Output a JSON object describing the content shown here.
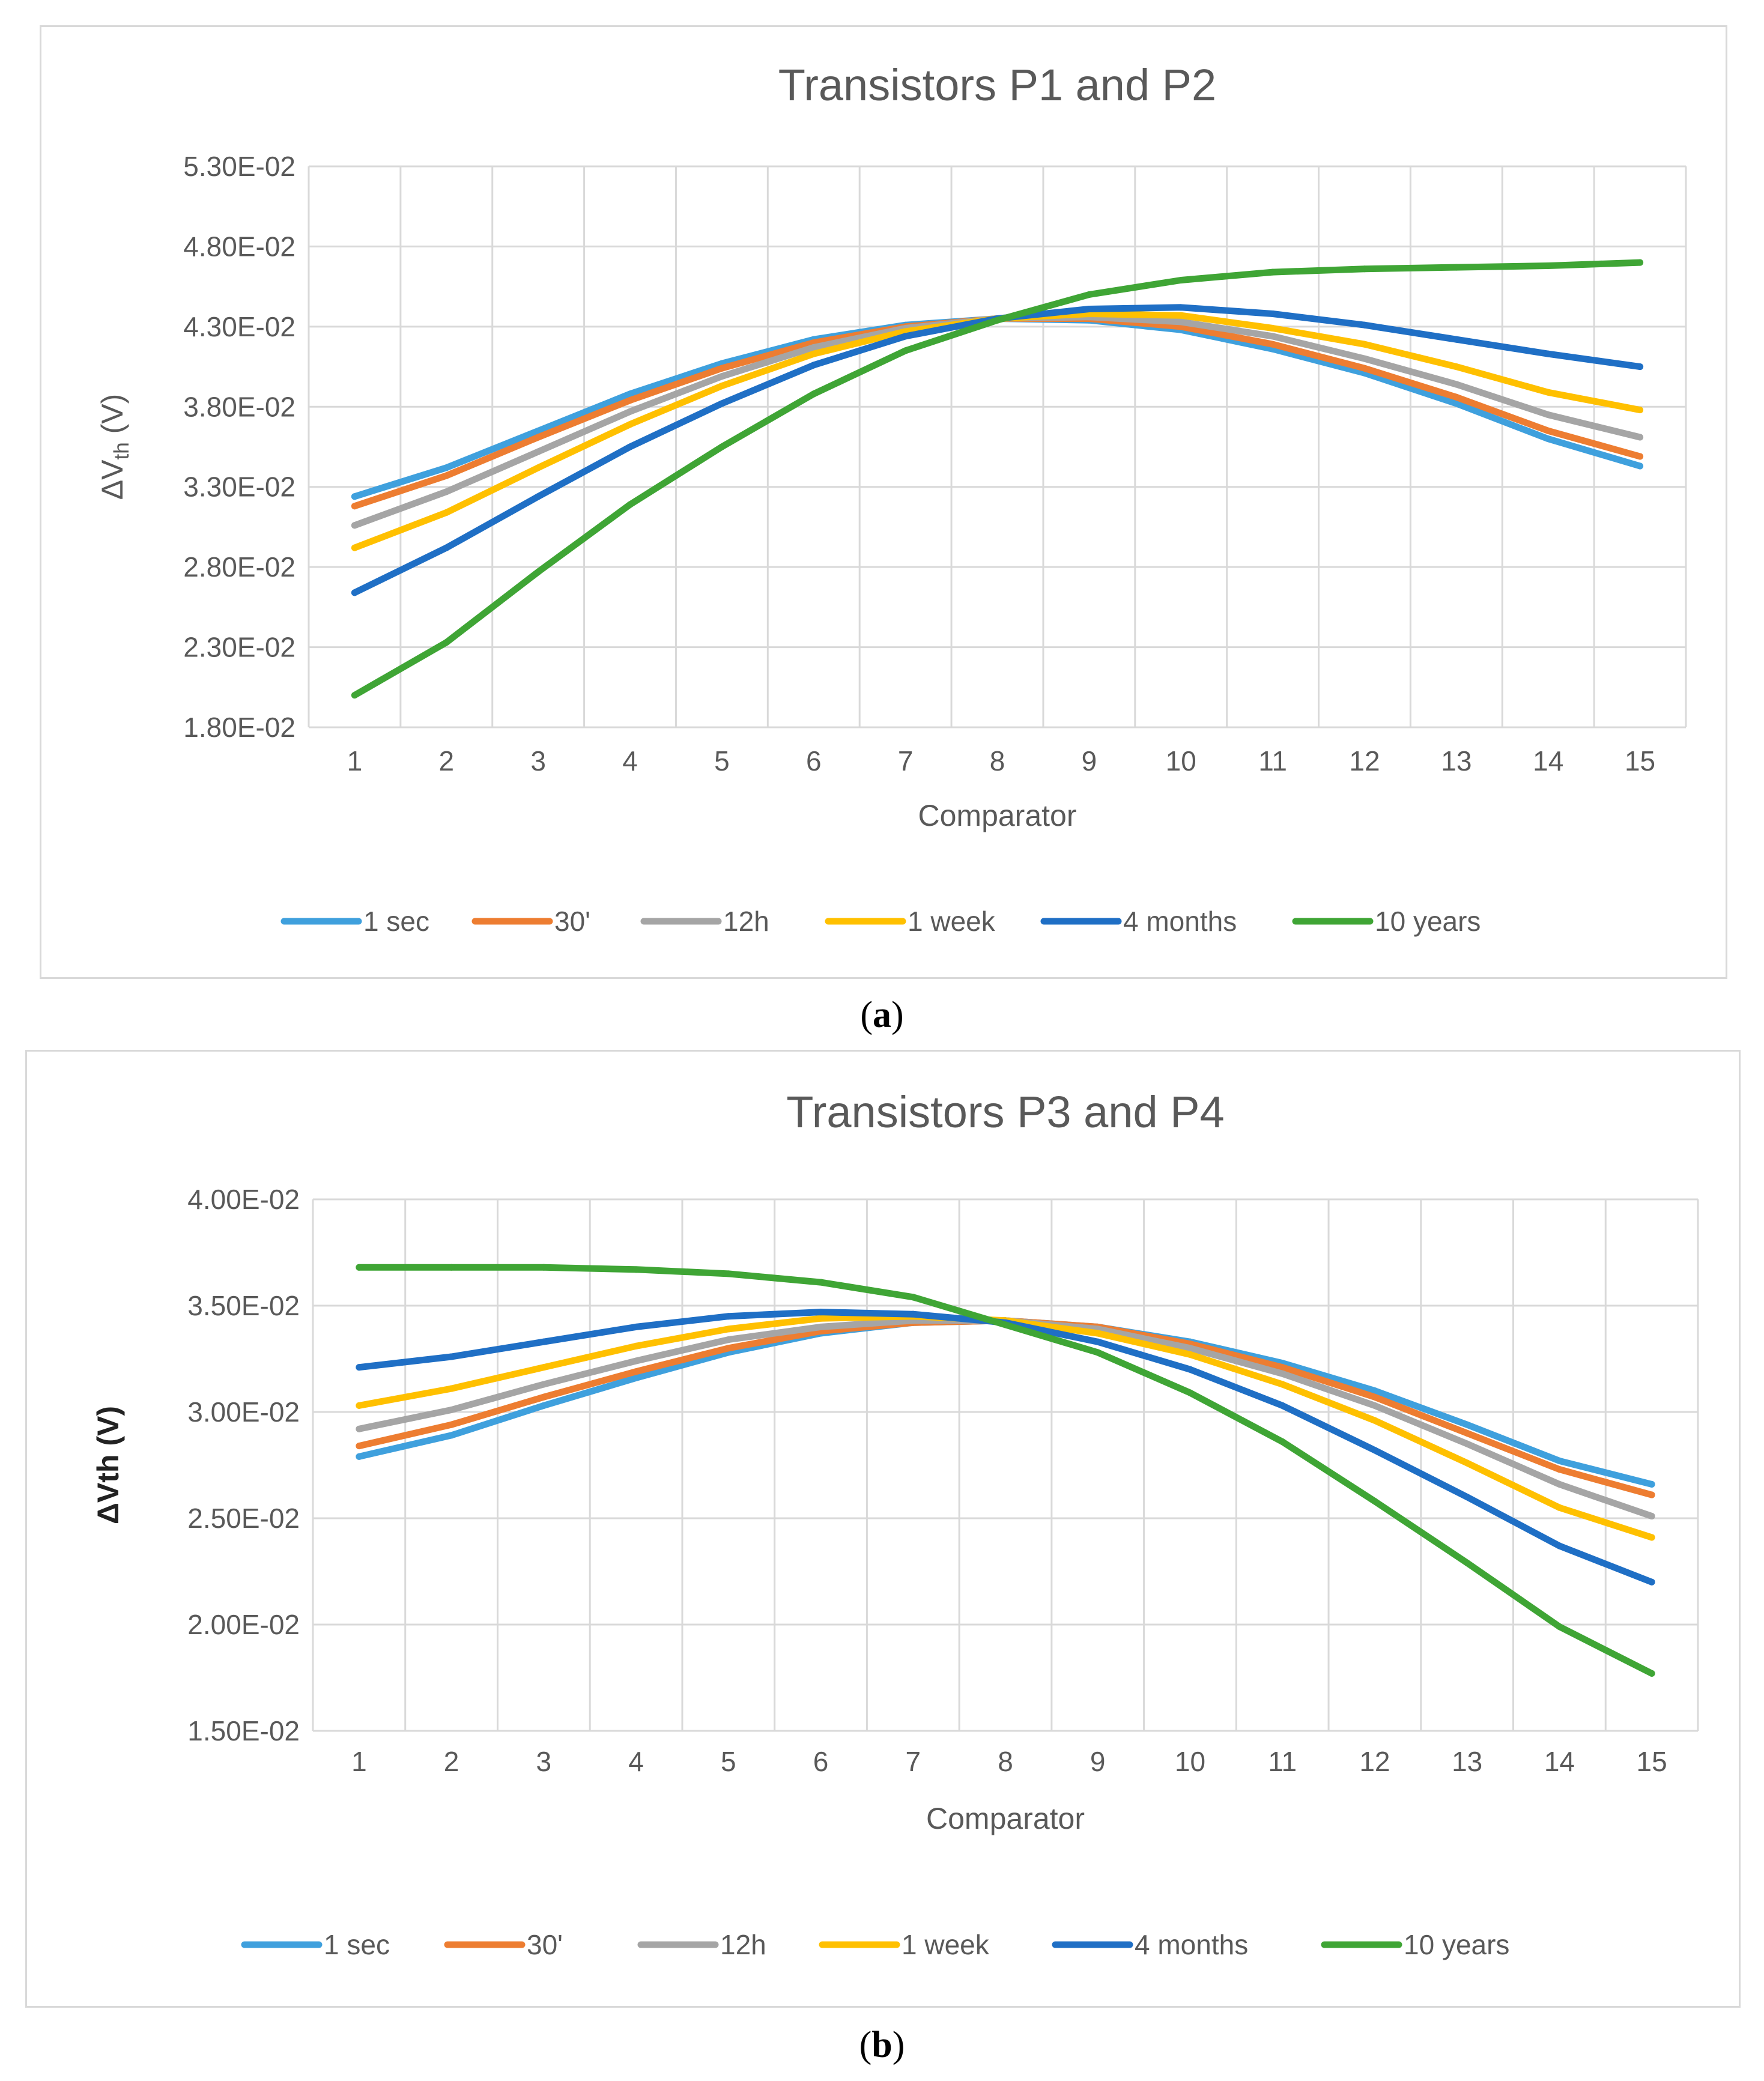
{
  "chart_data": [
    {
      "type": "line",
      "title": "Transistors P1 and P2",
      "xlabel": "Comparator",
      "ylabel_main": "ΔV",
      "ylabel_sub": "th",
      "ylabel_unit": " (V)",
      "ylim": [
        0.018,
        0.053
      ],
      "ytick_values": [
        0.018,
        0.023,
        0.028,
        0.033,
        0.038,
        0.043,
        0.048,
        0.053
      ],
      "ytick_labels": [
        "1.80E-02",
        "2.30E-02",
        "2.80E-02",
        "3.30E-02",
        "3.80E-02",
        "4.30E-02",
        "4.80E-02",
        "5.30E-02"
      ],
      "categories": [
        "1",
        "2",
        "3",
        "4",
        "5",
        "6",
        "7",
        "8",
        "9",
        "10",
        "11",
        "12",
        "13",
        "14",
        "15"
      ],
      "grid": true,
      "legend": "bottom",
      "caption_letter": "a",
      "series": [
        {
          "name": "1 sec",
          "color": "#3FA0DD",
          "values": [
            0.0324,
            0.0342,
            0.0365,
            0.0388,
            0.0407,
            0.0422,
            0.0431,
            0.0435,
            0.0434,
            0.0428,
            0.0416,
            0.0401,
            0.0382,
            0.036,
            0.0343
          ]
        },
        {
          "name": "30'",
          "color": "#ED7D31",
          "values": [
            0.0318,
            0.0337,
            0.0361,
            0.0384,
            0.0404,
            0.042,
            0.043,
            0.0435,
            0.0435,
            0.043,
            0.0419,
            0.0404,
            0.0386,
            0.0365,
            0.0349
          ]
        },
        {
          "name": "12h",
          "color": "#A5A5A5",
          "values": [
            0.0306,
            0.0327,
            0.0352,
            0.0377,
            0.0399,
            0.0417,
            0.0429,
            0.0435,
            0.0436,
            0.0433,
            0.0424,
            0.041,
            0.0394,
            0.0375,
            0.0361
          ]
        },
        {
          "name": "1 week",
          "color": "#FFC000",
          "values": [
            0.0292,
            0.0314,
            0.0342,
            0.0369,
            0.0393,
            0.0413,
            0.0427,
            0.0435,
            0.0438,
            0.0437,
            0.0429,
            0.0419,
            0.0405,
            0.0389,
            0.0378
          ]
        },
        {
          "name": "4 months",
          "color": "#1F6FC5",
          "values": [
            0.0264,
            0.0292,
            0.0324,
            0.0355,
            0.0382,
            0.0406,
            0.0424,
            0.0435,
            0.0441,
            0.0442,
            0.0438,
            0.0431,
            0.0422,
            0.0413,
            0.0405
          ]
        },
        {
          "name": "10 years",
          "color": "#3FA535",
          "values": [
            0.02,
            0.0233,
            0.0277,
            0.0319,
            0.0355,
            0.0388,
            0.0415,
            0.0434,
            0.045,
            0.0459,
            0.0464,
            0.0466,
            0.0467,
            0.0468,
            0.047
          ]
        }
      ]
    },
    {
      "type": "line",
      "title": "Transistors P3 and P4",
      "xlabel": "Comparator",
      "ylabel_main": "ΔVth",
      "ylabel_sub": "",
      "ylabel_unit": " (V)",
      "ylim": [
        0.015,
        0.04
      ],
      "ytick_values": [
        0.015,
        0.02,
        0.025,
        0.03,
        0.035,
        0.04
      ],
      "ytick_labels": [
        "1.50E-02",
        "2.00E-02",
        "2.50E-02",
        "3.00E-02",
        "3.50E-02",
        "4.00E-02"
      ],
      "categories": [
        "1",
        "2",
        "3",
        "4",
        "5",
        "6",
        "7",
        "8",
        "9",
        "10",
        "11",
        "12",
        "13",
        "14",
        "15"
      ],
      "grid": true,
      "legend": "bottom",
      "caption_letter": "b",
      "series": [
        {
          "name": "1 sec",
          "color": "#3FA0DD",
          "values": [
            0.0279,
            0.0289,
            0.0303,
            0.0316,
            0.0328,
            0.0337,
            0.0342,
            0.0343,
            0.034,
            0.0333,
            0.0323,
            0.031,
            0.0294,
            0.0277,
            0.0266
          ]
        },
        {
          "name": "30'",
          "color": "#ED7D31",
          "values": [
            0.0284,
            0.0294,
            0.0307,
            0.0319,
            0.033,
            0.0338,
            0.0342,
            0.0343,
            0.034,
            0.0332,
            0.0321,
            0.0307,
            0.029,
            0.0273,
            0.0261
          ]
        },
        {
          "name": "12h",
          "color": "#A5A5A5",
          "values": [
            0.0292,
            0.0301,
            0.0313,
            0.0324,
            0.0334,
            0.034,
            0.0343,
            0.0343,
            0.0339,
            0.033,
            0.0318,
            0.0303,
            0.0285,
            0.0266,
            0.0251
          ]
        },
        {
          "name": "1 week",
          "color": "#FFC000",
          "values": [
            0.0303,
            0.0311,
            0.0321,
            0.0331,
            0.0339,
            0.0344,
            0.0345,
            0.0343,
            0.0337,
            0.0327,
            0.0313,
            0.0296,
            0.0276,
            0.0255,
            0.0241
          ]
        },
        {
          "name": "4 months",
          "color": "#1F6FC5",
          "values": [
            0.0321,
            0.0326,
            0.0333,
            0.034,
            0.0345,
            0.0347,
            0.0346,
            0.0342,
            0.0333,
            0.032,
            0.0303,
            0.0282,
            0.026,
            0.0237,
            0.022
          ]
        },
        {
          "name": "10 years",
          "color": "#3FA535",
          "values": [
            0.0368,
            0.0368,
            0.0368,
            0.0367,
            0.0365,
            0.0361,
            0.0354,
            0.0341,
            0.0328,
            0.0309,
            0.0286,
            0.0258,
            0.0229,
            0.0199,
            0.0177
          ]
        }
      ]
    }
  ]
}
